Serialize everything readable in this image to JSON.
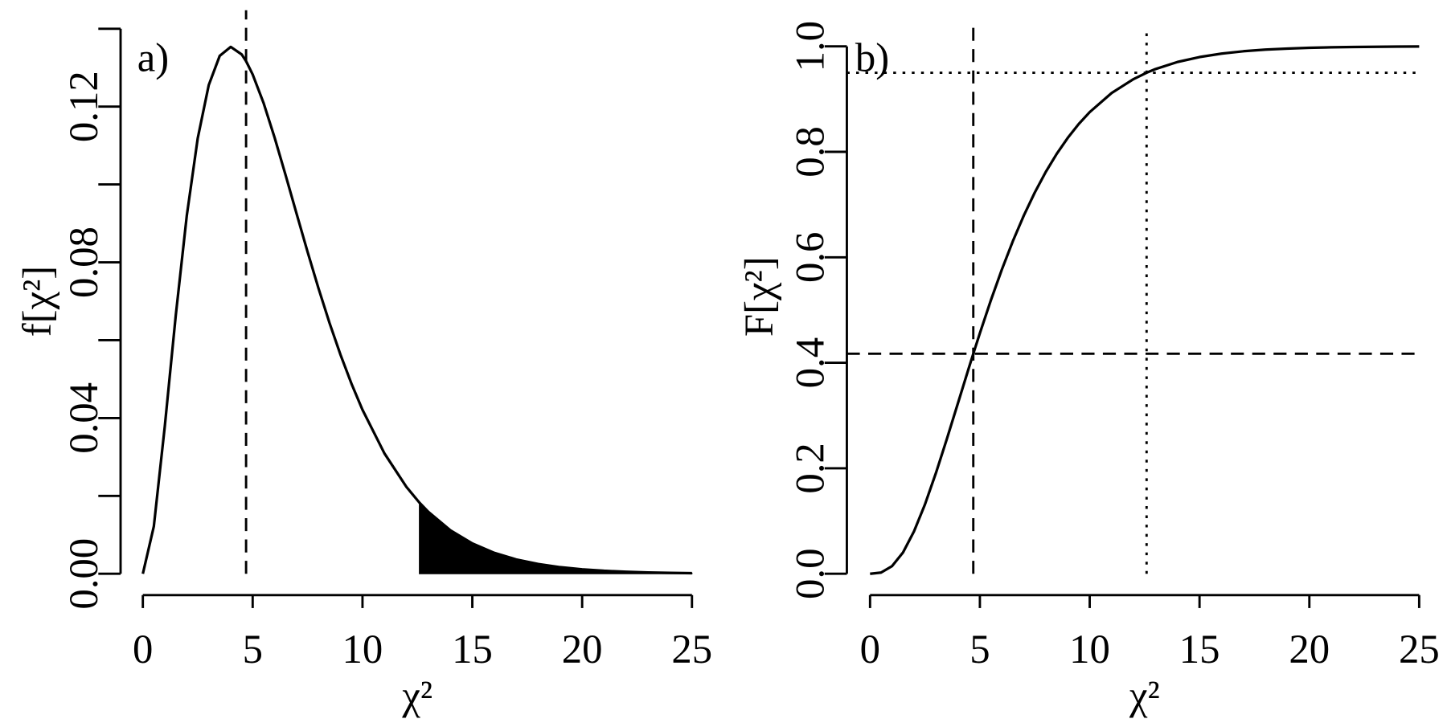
{
  "chart_data": [
    {
      "type": "line",
      "panel_label": "a)",
      "x_label": "χ²",
      "y_label": "f[χ²]",
      "color": "#000000",
      "x": [
        0,
        0.5,
        1,
        1.5,
        2,
        2.5,
        3,
        3.5,
        4,
        4.5,
        4.7,
        5,
        5.5,
        6,
        6.5,
        7,
        7.5,
        8,
        8.5,
        9,
        9.5,
        10,
        11,
        12,
        12.59,
        13,
        14,
        15,
        16,
        17,
        18,
        19,
        20,
        21,
        22,
        23,
        24,
        25
      ],
      "values": [
        0,
        0.01217,
        0.03791,
        0.06643,
        0.09197,
        0.11191,
        0.12552,
        0.13304,
        0.13534,
        0.1334,
        0.13167,
        0.12826,
        0.12087,
        0.11202,
        0.10239,
        0.09248,
        0.08268,
        0.07326,
        0.06441,
        0.05624,
        0.0488,
        0.04211,
        0.03091,
        0.02231,
        0.01828,
        0.01588,
        0.01117,
        0.00778,
        0.00537,
        0.00368,
        0.0025,
        0.00169,
        0.00114,
        0.00076,
        0.00051,
        0.00034,
        0.00022,
        0.00015
      ],
      "shade_from": 12.59,
      "vlines": [
        {
          "x": 4.7,
          "style": "dashed"
        }
      ],
      "hlines": [],
      "xlim": [
        0,
        25
      ],
      "xticks": [
        0,
        5,
        10,
        15,
        20,
        25
      ],
      "ylim": [
        0,
        0.14
      ],
      "yticks": [
        {
          "value": 0,
          "label": "0.00"
        },
        {
          "value": 0.04,
          "label": "0.04"
        },
        {
          "value": 0.08,
          "label": "0.08"
        },
        {
          "value": 0.12,
          "label": "0.12"
        }
      ],
      "yminor_ticks": [
        0.02,
        0.06,
        0.1,
        0.14
      ]
    },
    {
      "type": "line",
      "panel_label": "b)",
      "x_label": "χ²",
      "y_label": "F[χ²]",
      "color": "#000000",
      "x": [
        0,
        0.5,
        1,
        1.5,
        2,
        2.5,
        3,
        3.5,
        4,
        4.5,
        4.7,
        5,
        5.5,
        6,
        6.5,
        7,
        7.5,
        8,
        8.5,
        9,
        9.5,
        10,
        11,
        12,
        12.59,
        13,
        14,
        15,
        16,
        17,
        18,
        19,
        20,
        21,
        22,
        23,
        24,
        25
      ],
      "values": [
        0,
        0.0022,
        0.0144,
        0.0404,
        0.0803,
        0.1315,
        0.1912,
        0.2561,
        0.3233,
        0.3907,
        0.4172,
        0.4562,
        0.5185,
        0.5768,
        0.6305,
        0.6792,
        0.7229,
        0.7619,
        0.7963,
        0.8264,
        0.8527,
        0.8753,
        0.9116,
        0.938,
        0.95,
        0.957,
        0.9704,
        0.9797,
        0.9862,
        0.9907,
        0.9938,
        0.9958,
        0.9972,
        0.9982,
        0.9988,
        0.9992,
        0.9995,
        0.9997
      ],
      "vlines": [
        {
          "x": 4.7,
          "style": "dashed"
        },
        {
          "x": 12.59,
          "style": "dotted"
        }
      ],
      "hlines": [
        {
          "y": 0.4172,
          "style": "dashed"
        },
        {
          "y": 0.95,
          "style": "dotted"
        }
      ],
      "xlim": [
        0,
        25
      ],
      "xticks": [
        0,
        5,
        10,
        15,
        20,
        25
      ],
      "ylim": [
        0,
        1
      ],
      "yticks": [
        {
          "value": 0,
          "label": "0.0"
        },
        {
          "value": 0.2,
          "label": "0.2"
        },
        {
          "value": 0.4,
          "label": "0.4"
        },
        {
          "value": 0.6,
          "label": "0.6"
        },
        {
          "value": 0.8,
          "label": "0.8"
        },
        {
          "value": 1,
          "label": "1.0"
        }
      ],
      "yminor_ticks": []
    }
  ]
}
